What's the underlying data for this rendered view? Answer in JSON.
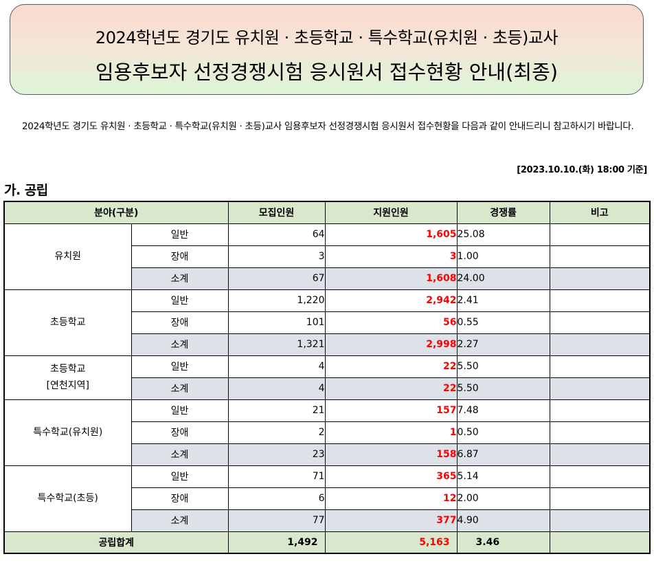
{
  "title": {
    "line1": "2024학년도 경기도 유치원 · 초등학교 · 특수학교(유치원 · 초등)교사",
    "line2": "임용후보자 선정경쟁시험 응시원서 접수현황 안내(최종)"
  },
  "intro": "2024학년도 경기도 유치원 · 초등학교 · 특수학교(유치원 · 초등)교사 임용후보자 선정경쟁시험 응시원서 접수현황을 다음과 같이 안내드리니 참고하시기 바랍니다.",
  "basis": "[2023.10.10.(화) 18:00 기준]",
  "section": "가. 공립",
  "headers": {
    "field": "분야(구분)",
    "recruit": "모집인원",
    "applicants": "지원인원",
    "ratio": "경쟁률",
    "note": "비고"
  },
  "groups": [
    {
      "name": "유치원",
      "rows": [
        {
          "sub": "일반",
          "recruit": "64",
          "applicants": "1,605",
          "ratio": "25.08"
        },
        {
          "sub": "장애",
          "recruit": "3",
          "applicants": "3",
          "ratio": "1.00"
        },
        {
          "sub": "소계",
          "recruit": "67",
          "applicants": "1,608",
          "ratio": "24.00"
        }
      ]
    },
    {
      "name": "초등학교",
      "rows": [
        {
          "sub": "일반",
          "recruit": "1,220",
          "applicants": "2,942",
          "ratio": "2.41"
        },
        {
          "sub": "장애",
          "recruit": "101",
          "applicants": "56",
          "ratio": "0.55"
        },
        {
          "sub": "소계",
          "recruit": "1,321",
          "applicants": "2,998",
          "ratio": "2.27"
        }
      ]
    },
    {
      "name": "초등학교",
      "name2": "[연천지역]",
      "rows": [
        {
          "sub": "일반",
          "recruit": "4",
          "applicants": "22",
          "ratio": "5.50"
        },
        {
          "sub": "소계",
          "recruit": "4",
          "applicants": "22",
          "ratio": "5.50"
        }
      ]
    },
    {
      "name": "특수학교(유치원)",
      "rows": [
        {
          "sub": "일반",
          "recruit": "21",
          "applicants": "157",
          "ratio": "7.48"
        },
        {
          "sub": "장애",
          "recruit": "2",
          "applicants": "1",
          "ratio": "0.50"
        },
        {
          "sub": "소계",
          "recruit": "23",
          "applicants": "158",
          "ratio": "6.87"
        }
      ]
    },
    {
      "name": "특수학교(초등)",
      "rows": [
        {
          "sub": "일반",
          "recruit": "71",
          "applicants": "365",
          "ratio": "5.14"
        },
        {
          "sub": "장애",
          "recruit": "6",
          "applicants": "12",
          "ratio": "2.00"
        },
        {
          "sub": "소계",
          "recruit": "77",
          "applicants": "377",
          "ratio": "4.90"
        }
      ]
    }
  ],
  "total": {
    "label": "공립합계",
    "recruit": "1,492",
    "applicants": "5,163",
    "ratio": "3.46"
  },
  "colors": {
    "header_bg": "#d9e8cc",
    "subtotal_bg": "#dde1e8",
    "applicants_text": "#ff0000"
  }
}
